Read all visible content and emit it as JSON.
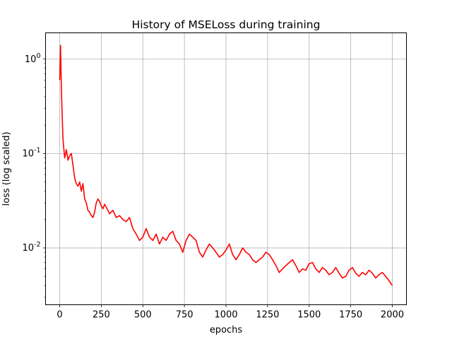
{
  "chart_data": {
    "type": "line",
    "title": "History of MSELoss during training",
    "xlabel": "epochs",
    "ylabel": "loss (log scaled)",
    "xlim": [
      -85,
      2085
    ],
    "ylim": [
      0.0025,
      1.9
    ],
    "yscale": "log",
    "grid": true,
    "xticks": [
      0,
      250,
      500,
      750,
      1000,
      1250,
      1500,
      1750,
      2000
    ],
    "xtick_labels": [
      "0",
      "250",
      "500",
      "750",
      "1000",
      "1250",
      "1500",
      "1750",
      "2000"
    ],
    "ytick_values": [
      1,
      0.1,
      0.01
    ],
    "series": [
      {
        "color": "#ff0000",
        "x": [
          0,
          5,
          10,
          15,
          20,
          30,
          40,
          50,
          60,
          70,
          80,
          90,
          100,
          110,
          120,
          130,
          140,
          150,
          160,
          170,
          180,
          190,
          200,
          210,
          220,
          230,
          240,
          250,
          260,
          270,
          280,
          300,
          320,
          340,
          360,
          380,
          400,
          420,
          440,
          460,
          480,
          500,
          520,
          540,
          560,
          580,
          600,
          620,
          640,
          660,
          680,
          700,
          720,
          740,
          760,
          780,
          800,
          820,
          840,
          860,
          880,
          900,
          920,
          940,
          960,
          980,
          1000,
          1020,
          1040,
          1060,
          1080,
          1100,
          1120,
          1140,
          1160,
          1180,
          1200,
          1220,
          1240,
          1260,
          1280,
          1300,
          1320,
          1340,
          1360,
          1380,
          1400,
          1420,
          1440,
          1460,
          1480,
          1500,
          1520,
          1540,
          1560,
          1580,
          1600,
          1620,
          1640,
          1660,
          1680,
          1700,
          1720,
          1740,
          1760,
          1780,
          1800,
          1820,
          1840,
          1860,
          1880,
          1900,
          1920,
          1940,
          1960,
          1980,
          2000
        ],
        "y": [
          0.6,
          1.4,
          0.5,
          0.25,
          0.14,
          0.09,
          0.11,
          0.085,
          0.095,
          0.1,
          0.075,
          0.055,
          0.048,
          0.045,
          0.05,
          0.04,
          0.048,
          0.033,
          0.03,
          0.025,
          0.024,
          0.022,
          0.021,
          0.024,
          0.03,
          0.033,
          0.031,
          0.028,
          0.026,
          0.029,
          0.027,
          0.023,
          0.025,
          0.021,
          0.022,
          0.02,
          0.019,
          0.021,
          0.016,
          0.014,
          0.012,
          0.013,
          0.016,
          0.013,
          0.012,
          0.014,
          0.011,
          0.013,
          0.012,
          0.014,
          0.015,
          0.012,
          0.011,
          0.009,
          0.012,
          0.014,
          0.013,
          0.012,
          0.009,
          0.008,
          0.0095,
          0.011,
          0.01,
          0.009,
          0.008,
          0.0085,
          0.0095,
          0.011,
          0.0085,
          0.0075,
          0.0085,
          0.01,
          0.009,
          0.0085,
          0.0075,
          0.007,
          0.0075,
          0.008,
          0.009,
          0.0085,
          0.0075,
          0.0065,
          0.0055,
          0.006,
          0.0065,
          0.007,
          0.0075,
          0.0065,
          0.0055,
          0.006,
          0.0058,
          0.0068,
          0.007,
          0.006,
          0.0055,
          0.0062,
          0.0058,
          0.0052,
          0.0055,
          0.0062,
          0.0054,
          0.0048,
          0.005,
          0.0058,
          0.0062,
          0.0054,
          0.005,
          0.0055,
          0.0052,
          0.0058,
          0.0054,
          0.0048,
          0.0052,
          0.0055,
          0.005,
          0.0045,
          0.004
        ]
      }
    ]
  }
}
